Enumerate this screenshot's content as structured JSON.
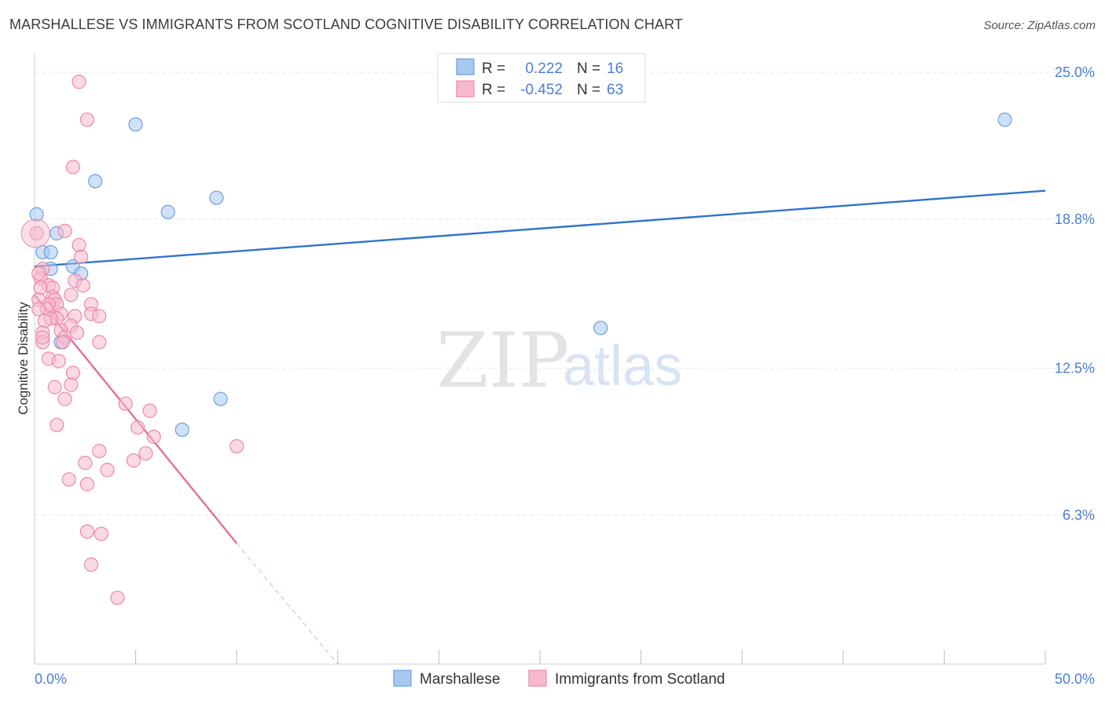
{
  "chart_data": {
    "type": "scatter",
    "title": "MARSHALLESE VS IMMIGRANTS FROM SCOTLAND COGNITIVE DISABILITY CORRELATION CHART",
    "source": "Source: ZipAtlas.com",
    "xlabel": "",
    "ylabel": "Cognitive Disability",
    "xlim": [
      0,
      50
    ],
    "ylim": [
      0,
      25.5
    ],
    "x_tick_labels": [
      "0.0%",
      "50.0%"
    ],
    "y_ticks": [
      {
        "value": 6.3,
        "label": "6.3%"
      },
      {
        "value": 12.5,
        "label": "12.5%"
      },
      {
        "value": 18.8,
        "label": "18.8%"
      },
      {
        "value": 25.0,
        "label": "25.0%"
      }
    ],
    "watermark": {
      "zip": "ZIP",
      "atlas": "atlas"
    },
    "legend_stats": [
      {
        "r_label": "R =",
        "r_value": "0.222",
        "n_label": "N =",
        "n_value": "16",
        "color": "#a8c8f0",
        "edge": "#6f9ee0"
      },
      {
        "r_label": "R =",
        "r_value": "-0.452",
        "n_label": "N =",
        "n_value": "63",
        "color": "#f7b9cc",
        "edge": "#ea8aa8"
      }
    ],
    "series": [
      {
        "name": "Marshallese",
        "color": "#a8c8f0",
        "edge": "#6f9ee0",
        "line_color": "#2f74c8",
        "trend": {
          "x0": 0,
          "y0": 16.8,
          "x1": 50,
          "y1": 20.0
        },
        "points": [
          [
            0.1,
            19.0
          ],
          [
            1.1,
            18.2
          ],
          [
            0.4,
            17.4
          ],
          [
            0.8,
            17.4
          ],
          [
            0.8,
            16.7
          ],
          [
            1.9,
            16.8
          ],
          [
            2.3,
            16.5
          ],
          [
            1.3,
            13.6
          ],
          [
            5.0,
            22.8
          ],
          [
            3.0,
            20.4
          ],
          [
            9.0,
            19.7
          ],
          [
            6.6,
            19.1
          ],
          [
            28.0,
            14.2
          ],
          [
            9.2,
            11.2
          ],
          [
            7.3,
            9.9
          ],
          [
            48.0,
            23.0
          ]
        ]
      },
      {
        "name": "Immigrants from Scotland",
        "color": "#f7b9cc",
        "edge": "#ea8aa8",
        "line_color": "#e0709a",
        "trend": {
          "x0": 0,
          "y0": 15.6,
          "x1": 10,
          "y1": 5.1
        },
        "trend_dash": {
          "x0": 10,
          "y0": 5.1,
          "x1": 15,
          "y1": 0
        },
        "points": [
          [
            0.1,
            18.2
          ],
          [
            2.2,
            24.6
          ],
          [
            2.6,
            23.0
          ],
          [
            1.9,
            21.0
          ],
          [
            1.5,
            18.3
          ],
          [
            2.2,
            17.7
          ],
          [
            2.3,
            17.2
          ],
          [
            0.4,
            16.7
          ],
          [
            0.3,
            16.3
          ],
          [
            2.0,
            16.2
          ],
          [
            0.7,
            16.0
          ],
          [
            2.4,
            16.0
          ],
          [
            0.3,
            15.9
          ],
          [
            0.9,
            15.9
          ],
          [
            1.8,
            15.6
          ],
          [
            0.9,
            15.5
          ],
          [
            1.0,
            15.4
          ],
          [
            1.1,
            15.2
          ],
          [
            0.7,
            15.2
          ],
          [
            0.6,
            15.0
          ],
          [
            2.8,
            15.2
          ],
          [
            1.3,
            14.8
          ],
          [
            2.8,
            14.8
          ],
          [
            1.1,
            14.6
          ],
          [
            0.8,
            14.6
          ],
          [
            0.5,
            14.5
          ],
          [
            3.2,
            14.7
          ],
          [
            2.0,
            14.7
          ],
          [
            1.8,
            14.3
          ],
          [
            1.3,
            14.1
          ],
          [
            0.4,
            14.0
          ],
          [
            2.1,
            14.0
          ],
          [
            1.5,
            13.8
          ],
          [
            0.4,
            13.6
          ],
          [
            1.4,
            13.6
          ],
          [
            3.2,
            13.6
          ],
          [
            0.7,
            12.9
          ],
          [
            1.2,
            12.8
          ],
          [
            1.9,
            12.3
          ],
          [
            1.8,
            11.8
          ],
          [
            1.0,
            11.7
          ],
          [
            1.5,
            11.2
          ],
          [
            4.5,
            11.0
          ],
          [
            5.7,
            10.7
          ],
          [
            1.1,
            10.1
          ],
          [
            5.1,
            10.0
          ],
          [
            5.9,
            9.6
          ],
          [
            10.0,
            9.2
          ],
          [
            3.2,
            9.0
          ],
          [
            5.5,
            8.9
          ],
          [
            2.5,
            8.5
          ],
          [
            4.9,
            8.6
          ],
          [
            3.6,
            8.2
          ],
          [
            1.7,
            7.8
          ],
          [
            2.6,
            7.6
          ],
          [
            2.6,
            5.6
          ],
          [
            3.3,
            5.5
          ],
          [
            2.8,
            4.2
          ],
          [
            4.1,
            2.8
          ],
          [
            0.2,
            15.4
          ],
          [
            0.2,
            15.0
          ],
          [
            0.4,
            13.8
          ],
          [
            0.2,
            16.5
          ]
        ]
      }
    ]
  },
  "legend_bottom": [
    {
      "label": "Marshallese",
      "color": "#a8c8f0",
      "edge": "#6f9ee0"
    },
    {
      "label": "Immigrants from Scotland",
      "color": "#f7b9cc",
      "edge": "#ea8aa8"
    }
  ]
}
